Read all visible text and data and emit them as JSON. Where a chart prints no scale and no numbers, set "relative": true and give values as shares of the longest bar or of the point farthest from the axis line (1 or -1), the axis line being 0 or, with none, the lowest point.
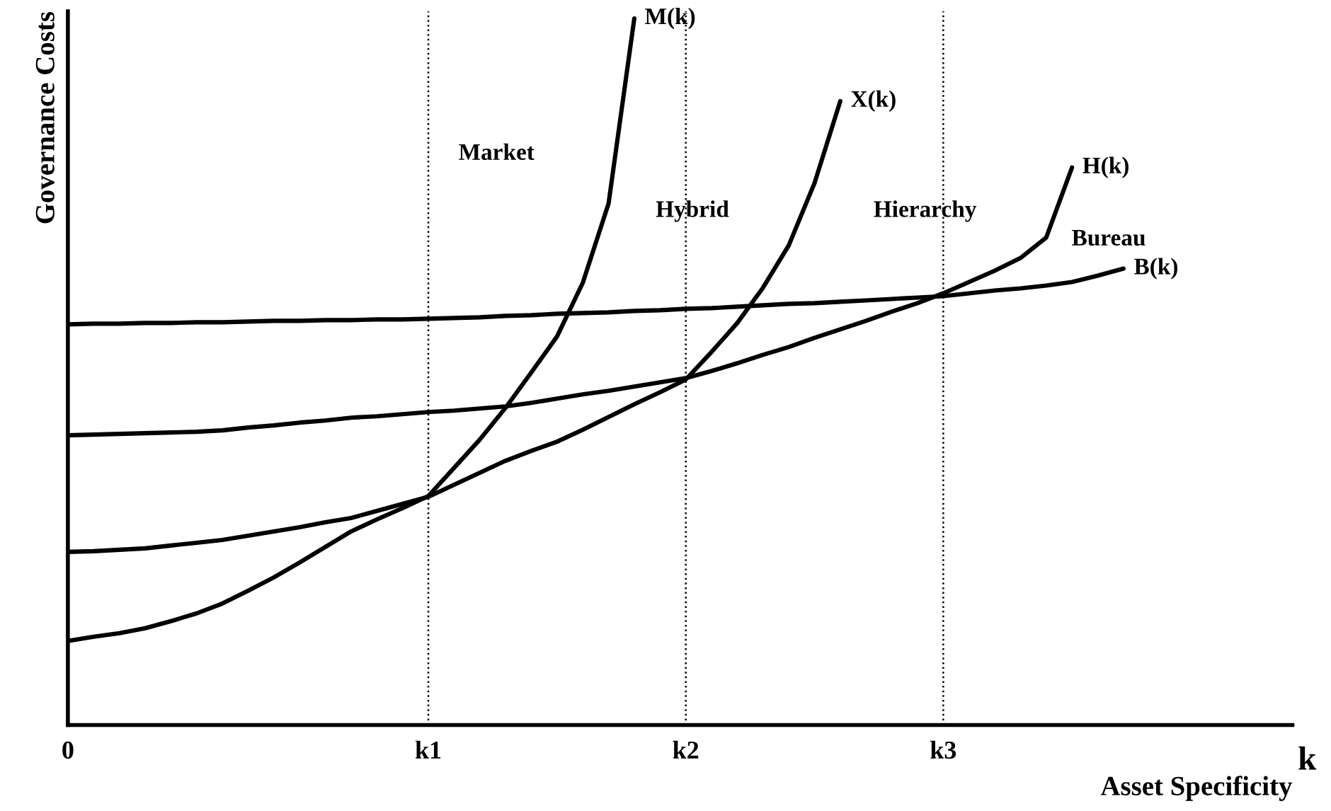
{
  "chart_data": {
    "type": "line",
    "relative": true,
    "xlabel": "Asset Specificity",
    "ylabel": "Governance Costs",
    "categories": [
      "0",
      null,
      null,
      null,
      null,
      null,
      null,
      null,
      null,
      null,
      null,
      null,
      null,
      null,
      "k1",
      null,
      null,
      null,
      null,
      null,
      null,
      null,
      null,
      null,
      "k2",
      null,
      null,
      null,
      null,
      null,
      null,
      null,
      null,
      null,
      "k3",
      null,
      null,
      null,
      null,
      null,
      null,
      null
    ],
    "series": [
      {
        "name": "M(k)",
        "color": "#000000",
        "values": [
          0.119,
          0.125,
          0.13,
          0.137,
          0.147,
          0.158,
          0.172,
          0.19,
          0.209,
          0.23,
          0.252,
          0.274,
          0.291,
          0.307,
          0.324,
          0.364,
          0.404,
          0.449,
          0.499,
          0.55,
          0.626,
          0.738,
          1,
          null,
          null,
          null,
          null,
          null,
          null,
          null,
          null,
          null,
          null,
          null,
          null,
          null,
          null,
          null,
          null,
          null,
          null,
          null
        ]
      },
      {
        "name": "X(k)",
        "color": "#000000",
        "values": [
          0.245,
          0.246,
          0.248,
          0.25,
          0.254,
          0.258,
          0.262,
          0.268,
          0.274,
          0.28,
          0.287,
          0.293,
          0.303,
          0.313,
          0.323,
          0.34,
          0.357,
          0.374,
          0.388,
          0.401,
          0.418,
          0.436,
          0.454,
          0.471,
          0.489,
          0.528,
          0.569,
          0.619,
          0.679,
          0.767,
          0.883,
          null,
          null,
          null,
          null,
          null,
          null,
          null,
          null,
          null,
          null,
          null
        ]
      },
      {
        "name": "H(k)",
        "color": "#000000",
        "values": [
          0.41,
          0.411,
          0.412,
          0.413,
          0.414,
          0.415,
          0.417,
          0.421,
          0.424,
          0.428,
          0.431,
          0.435,
          0.437,
          0.44,
          0.443,
          0.445,
          0.448,
          0.451,
          0.456,
          0.462,
          0.468,
          0.473,
          0.479,
          0.485,
          0.491,
          0.501,
          0.512,
          0.524,
          0.535,
          0.548,
          0.56,
          0.572,
          0.585,
          0.597,
          0.611,
          0.627,
          0.643,
          0.661,
          0.69,
          0.789,
          null,
          null
        ]
      },
      {
        "name": "B(k)",
        "color": "#000000",
        "values": [
          0.567,
          0.568,
          0.568,
          0.569,
          0.569,
          0.57,
          0.57,
          0.571,
          0.572,
          0.572,
          0.573,
          0.573,
          0.574,
          0.574,
          0.575,
          0.576,
          0.577,
          0.579,
          0.58,
          0.582,
          0.583,
          0.584,
          0.586,
          0.587,
          0.589,
          0.59,
          0.592,
          0.594,
          0.596,
          0.597,
          0.599,
          0.601,
          0.603,
          0.605,
          0.607,
          0.611,
          0.615,
          0.618,
          0.622,
          0.627,
          0.636,
          0.646
        ]
      }
    ],
    "ref_lines": [
      {
        "axis": "x",
        "value": "k1",
        "line_style": "dotted",
        "color": "#000000"
      },
      {
        "axis": "x",
        "value": "k2",
        "line_style": "dotted",
        "color": "#000000"
      },
      {
        "axis": "x",
        "value": "k3",
        "line_style": "dotted",
        "color": "#000000"
      }
    ],
    "annotations": [
      "Market",
      "Hybrid",
      "Hierarchy",
      "Bureau",
      "k"
    ],
    "line_style": "solid",
    "marker": "none"
  }
}
